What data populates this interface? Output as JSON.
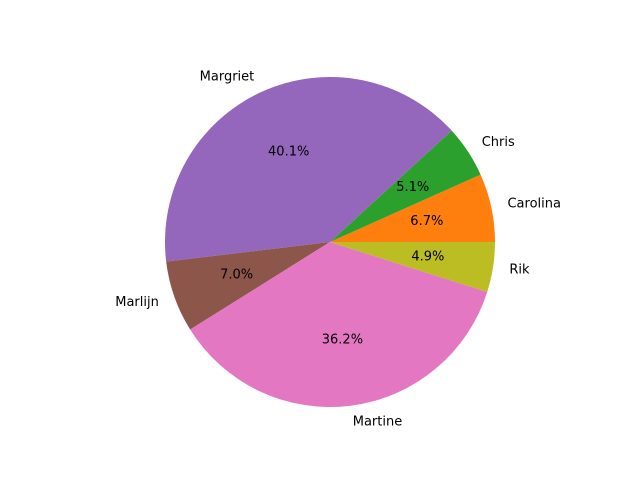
{
  "chart_data": {
    "type": "pie",
    "categories": [
      "Carolina",
      "Chris",
      "Margriet",
      "Marlijn",
      "Martine",
      "Rik"
    ],
    "values": [
      6.7,
      5.1,
      40.1,
      7.0,
      36.2,
      4.9
    ],
    "value_labels": [
      "6.7%",
      "5.1%",
      "40.1%",
      "7.0%",
      "36.2%",
      "4.9%"
    ],
    "colors": [
      "#ff7f0e",
      "#2ca02c",
      "#9467bd",
      "#8c564b",
      "#e377c2",
      "#bcbd22"
    ],
    "start_angle_deg": 0,
    "direction": "counterclockwise",
    "title": "",
    "legend": "none"
  }
}
